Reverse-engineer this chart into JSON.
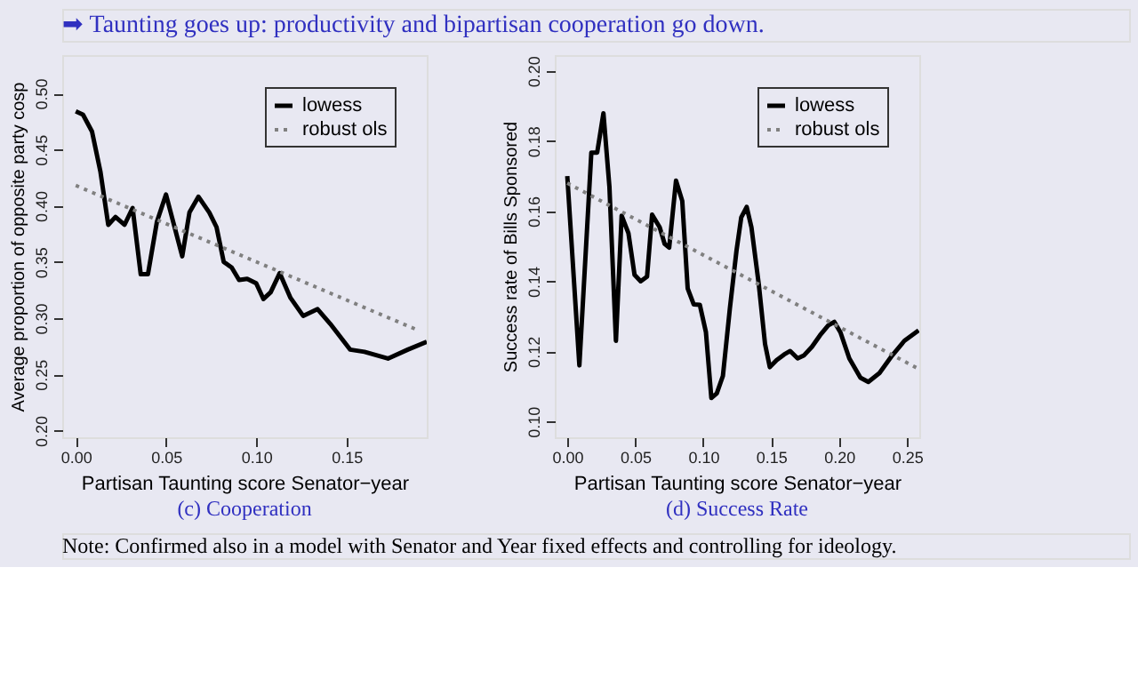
{
  "chart_data": [
    {
      "type": "line",
      "title": "(c) Cooperation",
      "xlabel": "Partisan Taunting score Senator−year",
      "ylabel": "Average proportion of opposite party cosp",
      "annotations": [
        "➡ Taunting goes up: productivity and bipartisan cooperation go down."
      ],
      "xlim": [
        -0.0075,
        0.1945
      ],
      "ylim": [
        0.194,
        0.534
      ],
      "xticks": [
        {
          "value": 0,
          "label": "0.00"
        },
        {
          "value": 0.05,
          "label": "0.05"
        },
        {
          "value": 0.1,
          "label": "0.10"
        },
        {
          "value": 0.15,
          "label": "0.15"
        }
      ],
      "yticks": [
        {
          "value": 0.2,
          "label": "0.20"
        },
        {
          "value": 0.25,
          "label": "0.25"
        },
        {
          "value": 0.3,
          "label": "0.30"
        },
        {
          "value": 0.35,
          "label": "0.35"
        },
        {
          "value": 0.4,
          "label": "0.40"
        },
        {
          "value": 0.45,
          "label": "0.45"
        },
        {
          "value": 0.5,
          "label": "0.50"
        }
      ],
      "grid": false,
      "legend": "top right",
      "marker": "none",
      "series": [
        {
          "name": "lowess",
          "color": "#000000",
          "line_style": "solid",
          "x": [
            0,
            0.004,
            0.009,
            0.0137,
            0.018,
            0.022,
            0.027,
            0.0315,
            0.036,
            0.04,
            0.045,
            0.05,
            0.059,
            0.063,
            0.068,
            0.074,
            0.078,
            0.082,
            0.0864,
            0.0905,
            0.095,
            0.1,
            0.104,
            0.108,
            0.113,
            0.119,
            0.126,
            0.134,
            0.141,
            0.152,
            0.16,
            0.173,
            0.184,
            0.1945
          ],
          "values": [
            0.484,
            0.481,
            0.466,
            0.43,
            0.383,
            0.39,
            0.383,
            0.398,
            0.339,
            0.339,
            0.386,
            0.41,
            0.355,
            0.394,
            0.408,
            0.394,
            0.381,
            0.35,
            0.345,
            0.334,
            0.335,
            0.331,
            0.317,
            0.323,
            0.34,
            0.318,
            0.302,
            0.308,
            0.295,
            0.272,
            0.27,
            0.264,
            0.272,
            0.279
          ]
        },
        {
          "name": "robust ols",
          "color": "#808080",
          "line_style": "dotted",
          "x": [
            0,
            0.19
          ],
          "values": [
            0.418,
            0.289
          ]
        }
      ]
    },
    {
      "type": "line",
      "title": "(d) Success Rate",
      "xlabel": "Partisan Taunting score Senator−year",
      "ylabel": "Success rate of Bills Sponsored",
      "annotations": [
        "Note: Confirmed also in a model with Senator and Year fixed effects and controlling for ideology."
      ],
      "xlim": [
        -0.0092,
        0.259
      ],
      "ylim": [
        0.0955,
        0.2045
      ],
      "xticks": [
        {
          "value": 0,
          "label": "0.00"
        },
        {
          "value": 0.05,
          "label": "0.05"
        },
        {
          "value": 0.1,
          "label": "0.10"
        },
        {
          "value": 0.15,
          "label": "0.15"
        },
        {
          "value": 0.2,
          "label": "0.20"
        },
        {
          "value": 0.25,
          "label": "0.25"
        }
      ],
      "yticks": [
        {
          "value": 0.1,
          "label": "0.10"
        },
        {
          "value": 0.12,
          "label": "0.12"
        },
        {
          "value": 0.14,
          "label": "0.14"
        },
        {
          "value": 0.16,
          "label": "0.16"
        },
        {
          "value": 0.18,
          "label": "0.18"
        },
        {
          "value": 0.2,
          "label": "0.20"
        }
      ],
      "grid": false,
      "legend": "top right",
      "marker": "none",
      "series": [
        {
          "name": "lowess",
          "color": "#000000",
          "line_style": "solid",
          "x": [
            0,
            0.0089,
            0.0177,
            0.022,
            0.0266,
            0.031,
            0.0358,
            0.04,
            0.045,
            0.0495,
            0.054,
            0.0587,
            0.0624,
            0.068,
            0.0716,
            0.075,
            0.08,
            0.0846,
            0.0886,
            0.093,
            0.0975,
            0.102,
            0.106,
            0.11,
            0.1145,
            0.1196,
            0.1245,
            0.128,
            0.132,
            0.1355,
            0.141,
            0.1455,
            0.149,
            0.154,
            0.1595,
            0.164,
            0.1695,
            0.174,
            0.18,
            0.186,
            0.192,
            0.1965,
            0.201,
            0.2075,
            0.2157,
            0.2215,
            0.2297,
            0.239,
            0.248,
            0.2585
          ],
          "values": [
            0.17,
            0.116,
            0.1767,
            0.1767,
            0.1879,
            0.167,
            0.123,
            0.1587,
            0.1537,
            0.1418,
            0.14,
            0.1413,
            0.159,
            0.1554,
            0.1507,
            0.1496,
            0.1687,
            0.1629,
            0.1379,
            0.1334,
            0.1333,
            0.1255,
            0.1067,
            0.108,
            0.113,
            0.1321,
            0.1487,
            0.1582,
            0.1612,
            0.1554,
            0.1388,
            0.1221,
            0.1155,
            0.1175,
            0.1191,
            0.1201,
            0.118,
            0.1188,
            0.1213,
            0.1246,
            0.1274,
            0.1284,
            0.1254,
            0.118,
            0.1125,
            0.1113,
            0.1138,
            0.1188,
            0.123,
            0.126
          ]
        },
        {
          "name": "robust ols",
          "color": "#808080",
          "line_style": "dotted",
          "x": [
            0,
            0.2585
          ],
          "values": [
            0.168,
            0.115
          ]
        }
      ]
    }
  ]
}
